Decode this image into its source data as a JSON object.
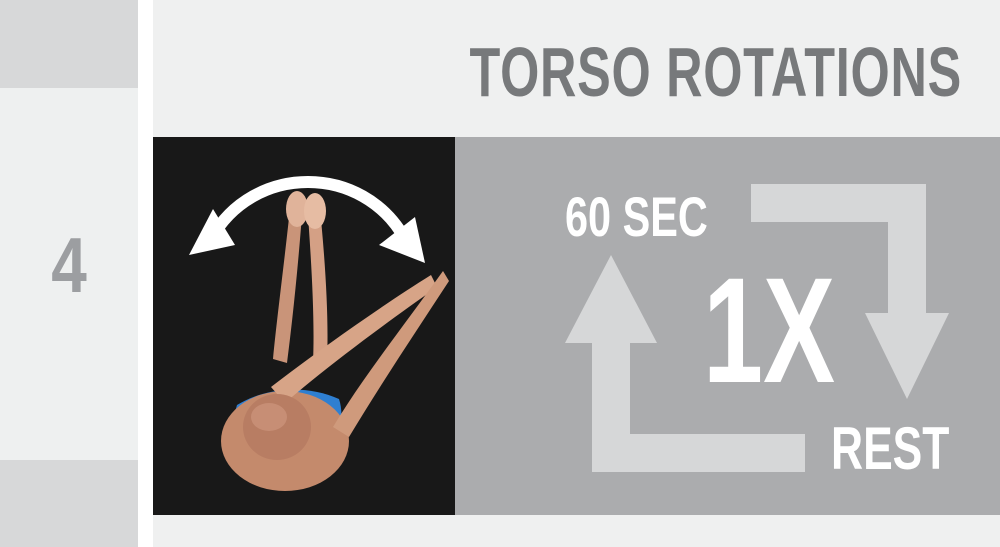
{
  "exercise": {
    "step_number": "4",
    "title": "TORSO ROTATIONS"
  },
  "workout": {
    "duration": "60 SEC",
    "rounds": "1X",
    "rest_label": "REST"
  },
  "photo": {
    "icon": "double-headed-curved-arrow-icon",
    "background": "#161616"
  },
  "colors": {
    "rail_background": "#eef0f0",
    "rail_accent": "#d7d8d9",
    "step_number": "#9c9ea1",
    "title": "#77797b",
    "info_panel": "#abacae",
    "cycle_arrows": "#d6d7d8",
    "info_text": "#ffffff"
  }
}
